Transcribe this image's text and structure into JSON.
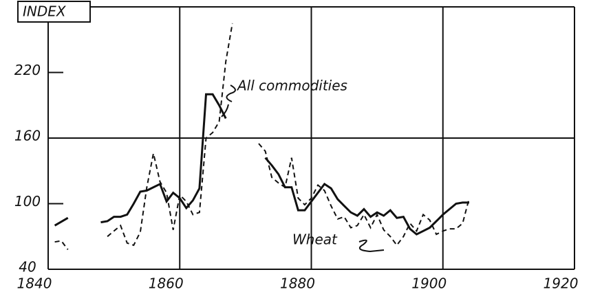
{
  "chart_data": {
    "type": "line",
    "y_label": "INDEX",
    "xlim": [
      1840,
      1920
    ],
    "xticks": [
      1840,
      1860,
      1880,
      1900,
      1920
    ],
    "ylim": [
      40,
      280
    ],
    "yticks": [
      40,
      100,
      160,
      220
    ],
    "ygrid": [
      160
    ],
    "grid": true,
    "series": [
      {
        "name": "All commodities",
        "color": "#111",
        "dash": "none",
        "x": [
          1841,
          1843,
          null,
          1848,
          1849,
          1850,
          1851,
          1852,
          1853,
          1854,
          1855,
          1856,
          1857,
          1858,
          1859,
          1860,
          1861,
          1862,
          1863,
          1864,
          1865,
          1866,
          1867,
          null,
          1873,
          1874,
          1875,
          1876,
          1877,
          1878,
          1879,
          1880,
          1881,
          1882,
          1883,
          1884,
          1885,
          1886,
          1887,
          1888,
          1889,
          1890,
          1891,
          1892,
          1893,
          1894,
          1895,
          1896,
          1897,
          1898,
          1899,
          1900,
          1901,
          1902,
          1903,
          1904
        ],
        "values": [
          80,
          87,
          null,
          83,
          84,
          88,
          88,
          90,
          100,
          111,
          112,
          115,
          118,
          102,
          110,
          105,
          96,
          103,
          114,
          200,
          200,
          190,
          178,
          null,
          142,
          135,
          127,
          115,
          115,
          94,
          94,
          102,
          110,
          118,
          114,
          104,
          98,
          92,
          89,
          95,
          88,
          92,
          89,
          94,
          87,
          88,
          77,
          72,
          75,
          78,
          84,
          90,
          95,
          100,
          101,
          101
        ]
      },
      {
        "name": "Wheat",
        "color": "#111",
        "dash": "7 5",
        "x": [
          1841,
          1842,
          1843,
          null,
          1849,
          1850,
          1851,
          1852,
          1853,
          1854,
          1855,
          1856,
          1857,
          1858,
          1859,
          1860,
          1861,
          1862,
          1863,
          1864,
          1865,
          1866,
          1867,
          1868,
          null,
          1872,
          1873,
          1874,
          1875,
          1876,
          1877,
          1878,
          1879,
          1880,
          1881,
          1882,
          1883,
          1884,
          1885,
          1886,
          1887,
          1888,
          1889,
          1890,
          1891,
          1892,
          1893,
          1894,
          1895,
          1896,
          1897,
          1898,
          1899,
          1900,
          1901,
          1902,
          1903,
          1904
        ],
        "values": [
          65,
          66,
          58,
          null,
          70,
          75,
          80,
          64,
          62,
          74,
          115,
          146,
          120,
          110,
          76,
          108,
          102,
          90,
          92,
          160,
          165,
          175,
          230,
          265,
          null,
          155,
          148,
          124,
          119,
          115,
          142,
          105,
          99,
          105,
          117,
          112,
          98,
          86,
          88,
          78,
          80,
          90,
          78,
          90,
          76,
          70,
          62,
          70,
          82,
          75,
          90,
          85,
          72,
          75,
          77,
          77,
          82,
          105
        ]
      }
    ]
  }
}
